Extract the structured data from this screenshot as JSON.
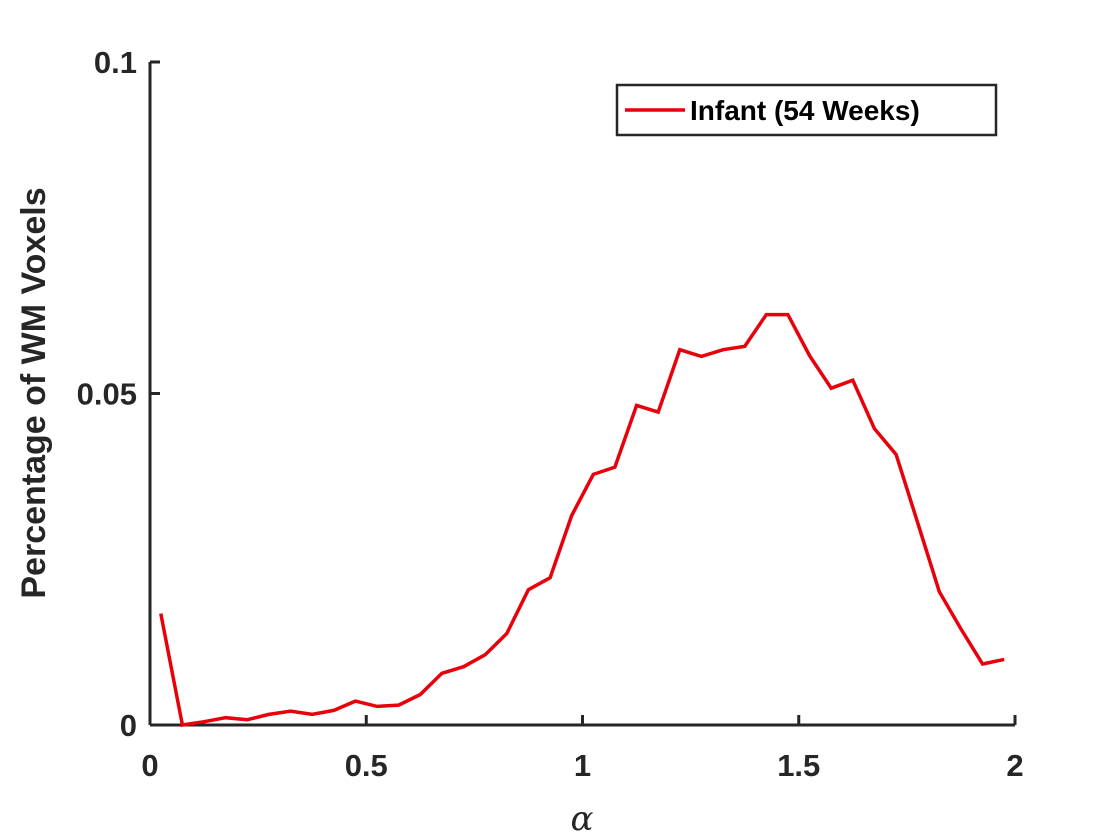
{
  "chart_data": {
    "type": "line",
    "title": "",
    "xlabel": "α",
    "ylabel": "Percentage of WM Voxels",
    "xlim": [
      0,
      2
    ],
    "ylim": [
      0,
      0.1
    ],
    "x_ticks": [
      0,
      0.5,
      1,
      1.5,
      2
    ],
    "x_tick_labels": [
      "0",
      "0.5",
      "1",
      "1.5",
      "2"
    ],
    "y_ticks": [
      0,
      0.05,
      0.1
    ],
    "y_tick_labels": [
      "0",
      "0.05",
      "0.1"
    ],
    "grid": false,
    "legend_position": "top-right",
    "series": [
      {
        "name": "Infant (54 Weeks)",
        "color": "#e8000b",
        "x": [
          0.025,
          0.075,
          0.125,
          0.175,
          0.225,
          0.275,
          0.325,
          0.375,
          0.425,
          0.475,
          0.525,
          0.575,
          0.625,
          0.675,
          0.725,
          0.775,
          0.825,
          0.875,
          0.925,
          0.975,
          1.025,
          1.075,
          1.125,
          1.175,
          1.225,
          1.275,
          1.325,
          1.375,
          1.425,
          1.475,
          1.525,
          1.575,
          1.625,
          1.675,
          1.725,
          1.775,
          1.825,
          1.875,
          1.925,
          1.975
        ],
        "y": [
          0.0168,
          0.0,
          0.0005,
          0.0011,
          0.0008,
          0.0016,
          0.0021,
          0.0016,
          0.0022,
          0.0036,
          0.0028,
          0.003,
          0.0046,
          0.0078,
          0.0088,
          0.0106,
          0.0138,
          0.0204,
          0.0222,
          0.0316,
          0.0378,
          0.0389,
          0.0482,
          0.0472,
          0.0566,
          0.0556,
          0.0566,
          0.0571,
          0.0619,
          0.0619,
          0.0557,
          0.0508,
          0.052,
          0.0447,
          0.0408,
          0.0305,
          0.0201,
          0.0145,
          0.0092,
          0.0099
        ]
      }
    ]
  }
}
